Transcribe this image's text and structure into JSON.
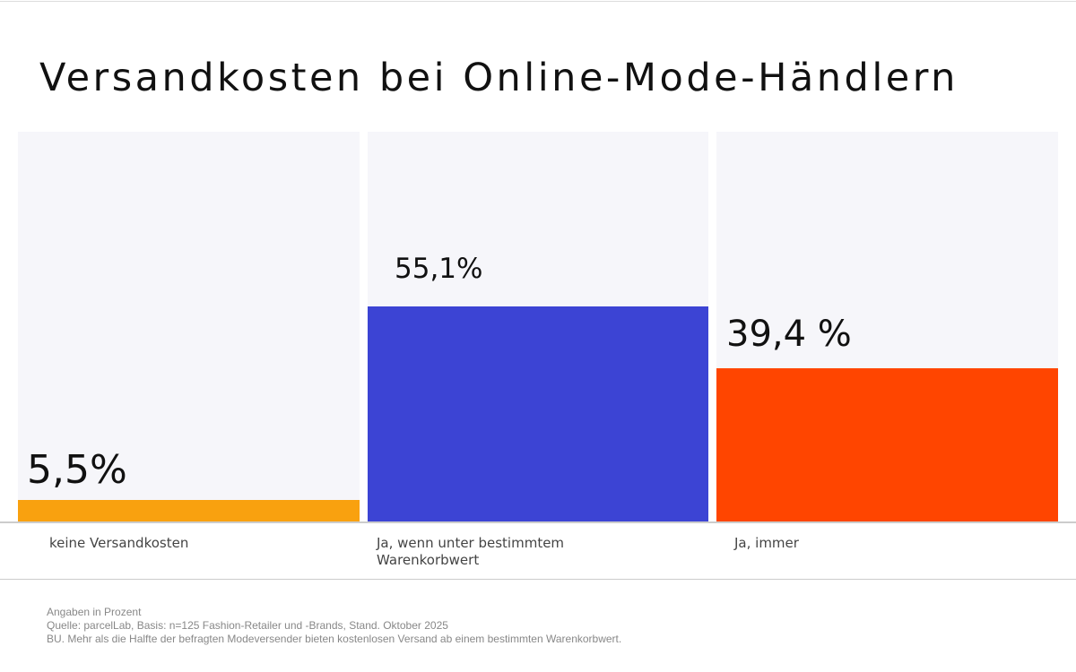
{
  "chart_data": {
    "type": "bar",
    "title": "Versandkosten bei Online-Mode-Händlern",
    "categories": [
      "keine Versandkosten",
      "Ja, wenn unter bestimmtem Warenkorbwert",
      "Ja, immer"
    ],
    "values": [
      5.5,
      55.1,
      39.4
    ],
    "data_labels": [
      "5,5%",
      "55,1%",
      "39,4 %"
    ],
    "colors": [
      "#f9a10f",
      "#3c44d4",
      "#ff4500"
    ],
    "background_column_color": "#f6f6fa",
    "ylim": [
      0,
      100
    ],
    "grid": false,
    "legend": "none"
  },
  "footer": {
    "note": "Angaben in Prozent",
    "source": "Quelle: parcelLab, Basis: n=125 Fashion-Retailer und -Brands, Stand. Oktober 2025",
    "caption": "BU. Mehr als die Halfte der befragten Modeversender bieten kostenlosen Versand ab einem bestimmten Warenkorbwert."
  }
}
